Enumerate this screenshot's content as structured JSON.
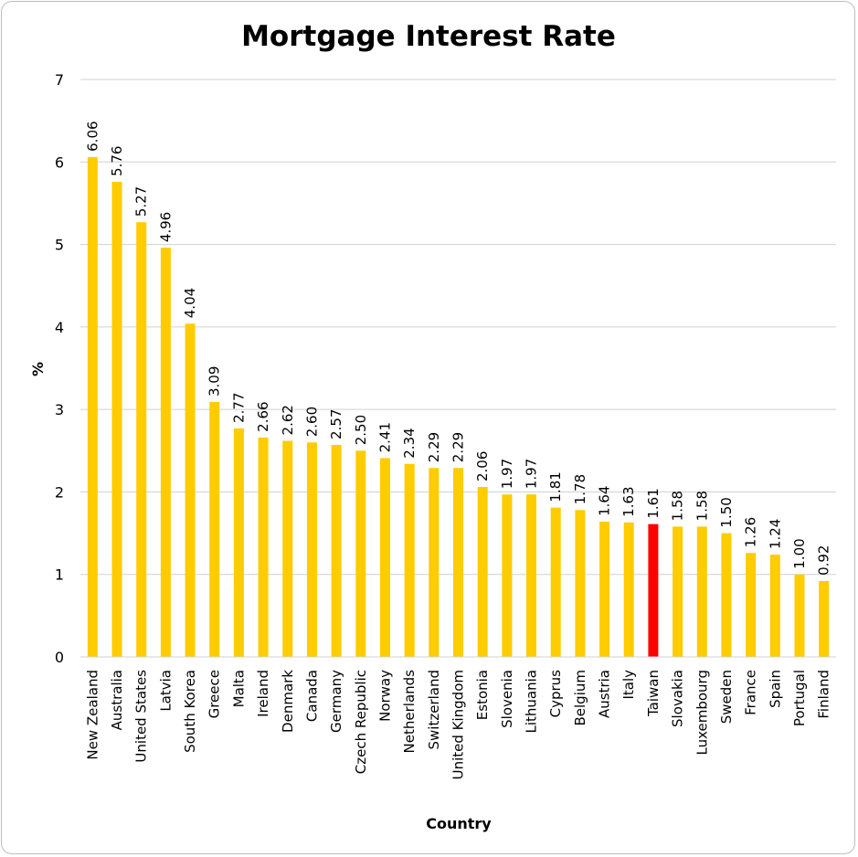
{
  "chart_data": {
    "type": "bar",
    "title": "Mortgage Interest Rate",
    "xlabel": "Country",
    "ylabel": "%",
    "ylim": [
      0,
      7
    ],
    "yticks": [
      "0",
      "1",
      "2",
      "3",
      "4",
      "5",
      "6",
      "7"
    ],
    "grid": true,
    "legend": "none",
    "bar_color": "#FFCC00",
    "highlight_color": "#FF0000",
    "highlight_category": "Taiwan",
    "categories": [
      "New Zealand",
      "Australia",
      "United States",
      "Latvia",
      "South Korea",
      "Greece",
      "Malta",
      "Ireland",
      "Denmark",
      "Canada",
      "Germany",
      "Czech Republic",
      "Norway",
      "Netherlands",
      "Switzerland",
      "United Kingdom",
      "Estonia",
      "Slovenia",
      "Lithuania",
      "Cyprus",
      "Belgium",
      "Austria",
      "Italy",
      "Taiwan",
      "Slovakia",
      "Luxembourg",
      "Sweden",
      "France",
      "Spain",
      "Portugal",
      "Finland"
    ],
    "values": [
      6.06,
      5.76,
      5.27,
      4.96,
      4.04,
      3.09,
      2.77,
      2.66,
      2.62,
      2.6,
      2.57,
      2.5,
      2.41,
      2.34,
      2.29,
      2.29,
      2.06,
      1.97,
      1.97,
      1.81,
      1.78,
      1.64,
      1.63,
      1.61,
      1.58,
      1.58,
      1.5,
      1.26,
      1.24,
      1.0,
      0.92
    ],
    "labels": [
      "6.06",
      "5.76",
      "5.27",
      "4.96",
      "4.04",
      "3.09",
      "2.77",
      "2.66",
      "2.62",
      "2.60",
      "2.57",
      "2.50",
      "2.41",
      "2.34",
      "2.29",
      "2.29",
      "2.06",
      "1.97",
      "1.97",
      "1.81",
      "1.78",
      "1.64",
      "1.63",
      "1.61",
      "1.58",
      "1.58",
      "1.50",
      "1.26",
      "1.24",
      "1.00",
      "0.92"
    ]
  }
}
